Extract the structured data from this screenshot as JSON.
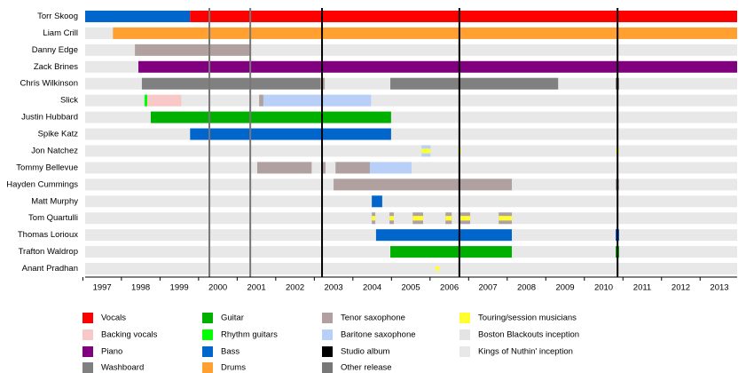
{
  "chart_data": {
    "type": "timeline",
    "xlim": [
      1997.06,
      2013.96
    ],
    "xticks": [
      {
        "value": 1997.5,
        "label": "1997"
      },
      {
        "value": 1998.5,
        "label": "1998"
      },
      {
        "value": 1999.5,
        "label": "1999"
      },
      {
        "value": 2000.5,
        "label": "2000"
      },
      {
        "value": 2001.5,
        "label": "2001"
      },
      {
        "value": 2002.5,
        "label": "2002"
      },
      {
        "value": 2003.5,
        "label": "2003"
      },
      {
        "value": 2004.5,
        "label": "2004"
      },
      {
        "value": 2005.5,
        "label": "2005"
      },
      {
        "value": 2006.5,
        "label": "2006"
      },
      {
        "value": 2007.5,
        "label": "2007"
      },
      {
        "value": 2008.5,
        "label": "2008"
      },
      {
        "value": 2009.5,
        "label": "2009"
      },
      {
        "value": 2010.5,
        "label": "2010"
      },
      {
        "value": 2011.5,
        "label": "2011"
      },
      {
        "value": 2012.5,
        "label": "2012"
      },
      {
        "value": 2013.5,
        "label": "2013"
      }
    ],
    "roles": [
      {
        "name": "Vocals",
        "color": "#ff0000"
      },
      {
        "name": "Backing vocals",
        "color": "#f8c8c8"
      },
      {
        "name": "Piano",
        "color": "#800080"
      },
      {
        "name": "Washboard",
        "color": "#808080"
      },
      {
        "name": "Guitar",
        "color": "#00b000"
      },
      {
        "name": "Rhythm guitars",
        "color": "#00ff00"
      },
      {
        "name": "Bass",
        "color": "#0066cc"
      },
      {
        "name": "Drums",
        "color": "#ffa030"
      },
      {
        "name": "Tenor saxophone",
        "color": "#b0a0a0"
      },
      {
        "name": "Baritone saxophone",
        "color": "#b8d0f8"
      },
      {
        "name": "Studio album",
        "color": "#000000"
      },
      {
        "name": "Other release",
        "color": "#777777"
      },
      {
        "name": "Touring/session musicians",
        "color": "#ffff30"
      },
      {
        "name": "Boston Blackouts inception",
        "color": "#e4e4e4"
      },
      {
        "name": "Kings of Nuthin' inception",
        "color": "#e8e8e8"
      }
    ],
    "releases": [
      {
        "x": 2000.28,
        "kind": "Other release"
      },
      {
        "x": 2001.34,
        "kind": "Other release"
      },
      {
        "x": 2003.2,
        "kind": "Studio album"
      },
      {
        "x": 2006.76,
        "kind": "Studio album"
      },
      {
        "x": 2010.86,
        "kind": "Studio album"
      }
    ],
    "members": [
      {
        "name": "Torr Skoog",
        "bars": [
          {
            "role": "Bass",
            "start": 1997.06,
            "end": 1999.78
          },
          {
            "role": "Vocals",
            "start": 1999.78,
            "end": 2013.96
          }
        ]
      },
      {
        "name": "Liam Crill",
        "bars": [
          {
            "role": "Drums",
            "start": 1997.78,
            "end": 2013.96
          }
        ]
      },
      {
        "name": "Danny Edge",
        "bars": [
          {
            "role": "Tenor saxophone",
            "start": 1998.35,
            "end": 2001.36
          }
        ]
      },
      {
        "name": "Zack Brines",
        "bars": [
          {
            "role": "Piano",
            "start": 1998.44,
            "end": 2013.96
          }
        ]
      },
      {
        "name": "Chris Wilkinson",
        "bars": [
          {
            "role": "Washboard",
            "start": 1998.53,
            "end": 2003.16
          },
          {
            "role": "Tenor saxophone",
            "start": 2003.16,
            "end": 2003.27
          },
          {
            "role": "Washboard",
            "start": 2004.97,
            "end": 2009.32
          },
          {
            "role": "Washboard",
            "start": 2010.81,
            "end": 2010.9
          }
        ]
      },
      {
        "name": "Slick",
        "bars": [
          {
            "role": "Rhythm guitars",
            "start": 1998.6,
            "end": 1998.67
          },
          {
            "role": "Backing vocals",
            "start": 1998.67,
            "end": 1999.55
          },
          {
            "role": "Tenor saxophone",
            "start": 2001.57,
            "end": 2001.68
          },
          {
            "role": "Baritone saxophone",
            "start": 2001.68,
            "end": 2004.47
          }
        ]
      },
      {
        "name": "Justin Hubbard",
        "bars": [
          {
            "role": "Guitar",
            "start": 1998.76,
            "end": 2004.99
          }
        ]
      },
      {
        "name": "Spike Katz",
        "bars": [
          {
            "role": "Bass",
            "start": 1999.78,
            "end": 2004.99
          }
        ]
      },
      {
        "name": "Jon Natchez",
        "bars": [
          {
            "role": "Baritone saxophone",
            "start": 2005.78,
            "end": 2006.01
          },
          {
            "role": "Touring/session musicians",
            "start": 2005.78,
            "end": 2006.01
          },
          {
            "role": "Touring/session musicians",
            "start": 2006.72,
            "end": 2006.81
          },
          {
            "role": "Touring/session musicians",
            "start": 2010.81,
            "end": 2010.9
          }
        ]
      },
      {
        "name": "Tommy Bellevue",
        "bars": [
          {
            "role": "Tenor saxophone",
            "start": 2001.52,
            "end": 2002.93
          },
          {
            "role": "Tenor saxophone",
            "start": 2003.18,
            "end": 2003.29
          },
          {
            "role": "Tenor saxophone",
            "start": 2003.55,
            "end": 2004.44
          },
          {
            "role": "Baritone saxophone",
            "start": 2004.44,
            "end": 2005.52
          }
        ]
      },
      {
        "name": "Hayden Cummings",
        "bars": [
          {
            "role": "Tenor saxophone",
            "start": 2003.5,
            "end": 2008.12
          },
          {
            "role": "Tenor saxophone",
            "start": 2010.81,
            "end": 2010.9
          }
        ]
      },
      {
        "name": "Matt Murphy",
        "bars": [
          {
            "role": "Bass",
            "start": 2004.49,
            "end": 2004.76
          }
        ]
      },
      {
        "name": "Tom Quartulli",
        "bars": [
          {
            "role": "Tenor saxophone",
            "start": 2004.49,
            "end": 2004.58
          },
          {
            "role": "Touring/session musicians",
            "start": 2004.49,
            "end": 2004.58
          },
          {
            "role": "Tenor saxophone",
            "start": 2004.95,
            "end": 2005.06
          },
          {
            "role": "Touring/session musicians",
            "start": 2004.95,
            "end": 2005.06
          },
          {
            "role": "Tenor saxophone",
            "start": 2005.55,
            "end": 2005.82
          },
          {
            "role": "Touring/session musicians",
            "start": 2005.55,
            "end": 2005.82
          },
          {
            "role": "Tenor saxophone",
            "start": 2006.4,
            "end": 2006.56
          },
          {
            "role": "Touring/session musicians",
            "start": 2006.4,
            "end": 2006.56
          },
          {
            "role": "Tenor saxophone",
            "start": 2006.76,
            "end": 2007.04
          },
          {
            "role": "Touring/session musicians",
            "start": 2006.76,
            "end": 2007.04
          },
          {
            "role": "Tenor saxophone",
            "start": 2007.78,
            "end": 2008.12
          },
          {
            "role": "Touring/session musicians",
            "start": 2007.78,
            "end": 2008.12
          }
        ]
      },
      {
        "name": "Thomas Lorioux",
        "bars": [
          {
            "role": "Bass",
            "start": 2004.6,
            "end": 2008.12
          },
          {
            "role": "Bass",
            "start": 2010.81,
            "end": 2010.9
          }
        ]
      },
      {
        "name": "Trafton Waldrop",
        "bars": [
          {
            "role": "Guitar",
            "start": 2004.97,
            "end": 2008.12
          },
          {
            "role": "Guitar",
            "start": 2010.81,
            "end": 2010.9
          }
        ]
      },
      {
        "name": "Anant Pradhan",
        "bars": [
          {
            "role": "Touring/session musicians",
            "start": 2006.14,
            "end": 2006.24
          }
        ]
      }
    ]
  }
}
